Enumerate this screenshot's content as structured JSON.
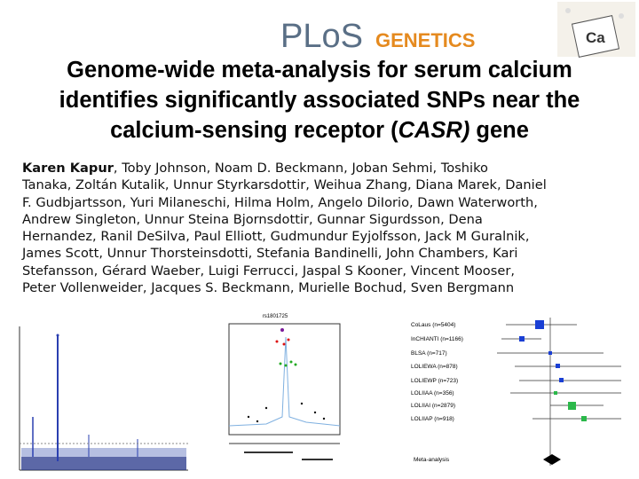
{
  "logo": {
    "plos": "PLoS",
    "journal": "GENETICS"
  },
  "title": {
    "line1": "Genome-wide meta-analysis for serum calcium",
    "line2": "identifies significantly associated SNPs near the",
    "line3_before": "calcium-sensing receptor (",
    "line3_gene": "CASR)",
    "line3_after": " gene"
  },
  "authors": {
    "first": "Karen Kapur",
    "lines": [
      ", Toby Johnson, Noam D. Beckmann, Joban Sehmi, Toshiko",
      "Tanaka, Zoltán Kutalik, Unnur Styrkarsdottir, Weihua Zhang, Diana Marek, Daniel",
      "F. Gudbjartsson, Yuri Milaneschi, Hilma Holm, Angelo DiIorio, Dawn Waterworth,",
      "Andrew Singleton, Unnur Steina Bjornsdottir, Gunnar Sigurdsson, Dena",
      "Hernandez, Ranil DeSilva, Paul Elliott, Gudmundur Eyjolfsson, Jack M Guralnik,",
      "James Scott, Unnur Thorsteinsdotti, Stefania Bandinelli, John Chambers, Kari",
      "Stefansson, Gérard Waeber, Luigi Ferrucci, Jaspal S Kooner, Vincent Mooser,",
      "Peter Vollenweider, Jacques S. Beckmann, Murielle Bochud, Sven Bergmann"
    ]
  },
  "figures": {
    "regional_title": "rs1801725",
    "forest_labels": [
      "CoLaus (n=5404)",
      "InCHIANTI (n=1166)",
      "BLSA (n=717)",
      "LOLIEWA (n=878)",
      "LOLIEWP (n=723)",
      "LOLIIAA (n=356)",
      "LOLIIAI (n=2879)",
      "LOLIIAP (n=918)"
    ],
    "meta_label": "Meta-analysis"
  }
}
